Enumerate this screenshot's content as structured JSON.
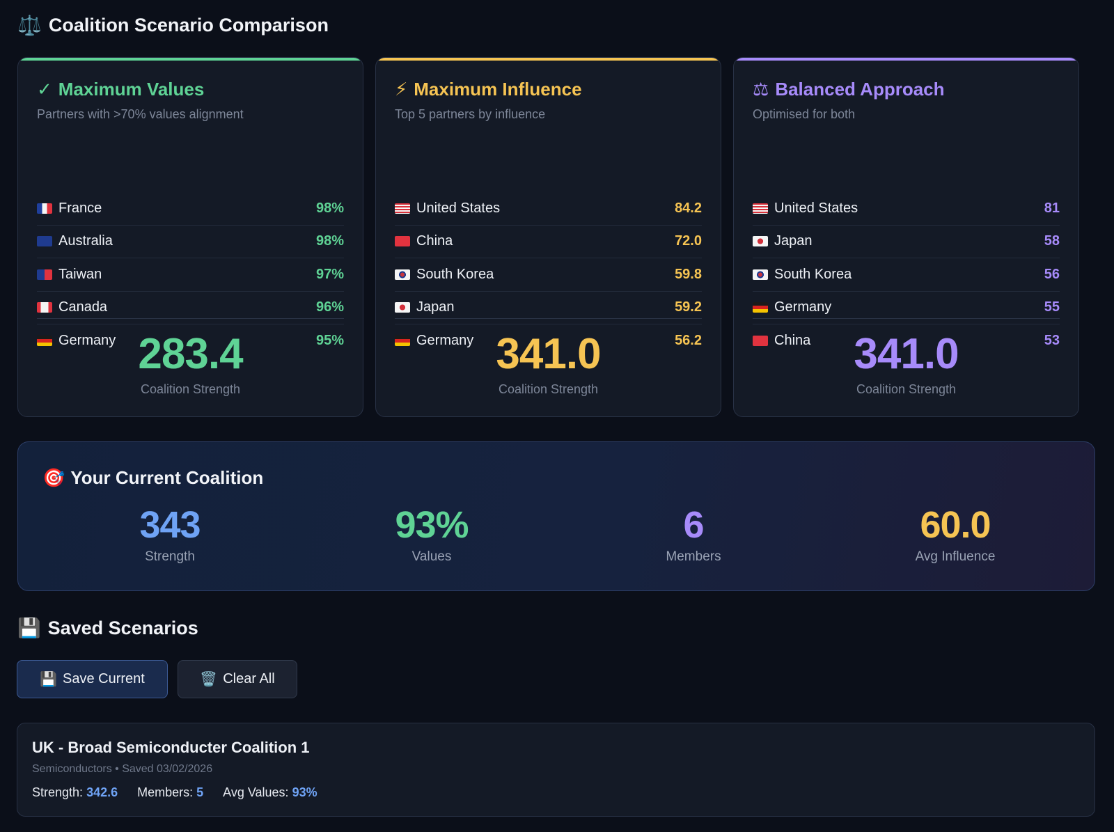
{
  "header": {
    "icon": "scales-icon",
    "emoji": "⚖️",
    "title": "Coalition Scenario Comparison"
  },
  "scenarios": [
    {
      "icon_glyph": "✓",
      "title": "Maximum Values",
      "subtitle": "Partners with >70% values alignment",
      "accent": "#5fd395",
      "rows": [
        {
          "country": "France",
          "flag": "fr",
          "value": "98%"
        },
        {
          "country": "Australia",
          "flag": "au",
          "value": "98%"
        },
        {
          "country": "Taiwan",
          "flag": "tw",
          "value": "97%"
        },
        {
          "country": "Canada",
          "flag": "ca",
          "value": "96%"
        },
        {
          "country": "Germany",
          "flag": "de",
          "value": "95%"
        }
      ],
      "strength": "283.4",
      "strength_label": "Coalition Strength"
    },
    {
      "icon_glyph": "⚡",
      "title": "Maximum Influence",
      "subtitle": "Top 5 partners by influence",
      "accent": "#f6c453",
      "rows": [
        {
          "country": "United States",
          "flag": "us",
          "value": "84.2"
        },
        {
          "country": "China",
          "flag": "cn",
          "value": "72.0"
        },
        {
          "country": "South Korea",
          "flag": "kr",
          "value": "59.8"
        },
        {
          "country": "Japan",
          "flag": "jp",
          "value": "59.2"
        },
        {
          "country": "Germany",
          "flag": "de",
          "value": "56.2"
        }
      ],
      "strength": "341.0",
      "strength_label": "Coalition Strength"
    },
    {
      "icon_glyph": "⚖",
      "title": "Balanced Approach",
      "subtitle": "Optimised for both",
      "accent": "#a78bfa",
      "rows": [
        {
          "country": "United States",
          "flag": "us",
          "value": "81"
        },
        {
          "country": "Japan",
          "flag": "jp",
          "value": "58"
        },
        {
          "country": "South Korea",
          "flag": "kr",
          "value": "56"
        },
        {
          "country": "Germany",
          "flag": "de",
          "value": "55"
        },
        {
          "country": "China",
          "flag": "cn",
          "value": "53"
        }
      ],
      "strength": "341.0",
      "strength_label": "Coalition Strength"
    }
  ],
  "current": {
    "title": "Your Current Coalition",
    "emoji": "🎯",
    "stats": [
      {
        "value": "343",
        "label": "Strength",
        "color": "#6fa3f5"
      },
      {
        "value": "93%",
        "label": "Values",
        "color": "#5fd395"
      },
      {
        "value": "6",
        "label": "Members",
        "color": "#a78bfa"
      },
      {
        "value": "60.0",
        "label": "Avg Influence",
        "color": "#f6c453"
      }
    ]
  },
  "saved": {
    "title": "Saved Scenarios",
    "emoji": "💾",
    "save_emoji": "💾",
    "save_label": "Save Current",
    "clear_emoji": "🗑️",
    "clear_label": "Clear All",
    "items": [
      {
        "title": "UK - Broad Semiconducter Coalition 1",
        "meta": "Semiconductors • Saved 03/02/2026",
        "strength_label": "Strength:",
        "strength": "342.6",
        "members_label": "Members:",
        "members": "5",
        "values_label": "Avg Values:",
        "values": "93%"
      }
    ]
  }
}
